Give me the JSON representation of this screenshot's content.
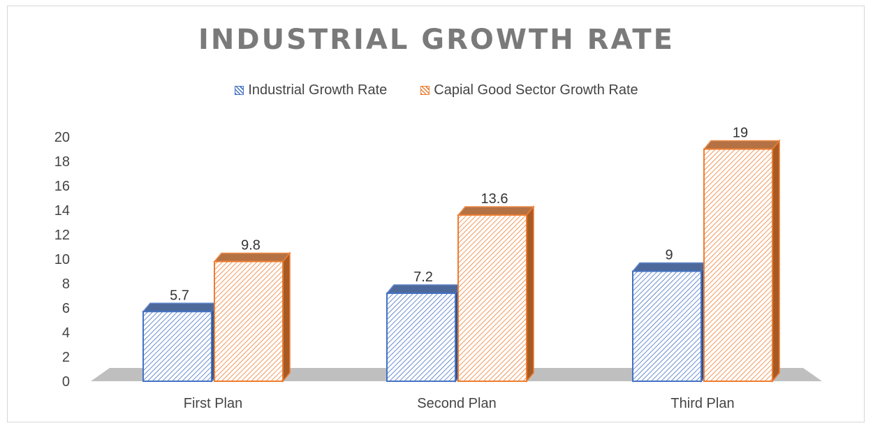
{
  "chart_data": {
    "type": "bar",
    "title": "INDUSTRIAL GROWTH RATE",
    "categories": [
      "First Plan",
      "Second Plan",
      "Third Plan"
    ],
    "series": [
      {
        "name": "Industrial Growth Rate",
        "values": [
          5.7,
          7.2,
          9
        ],
        "labels": [
          "5.7",
          "7.2",
          "9"
        ],
        "color": "#4472c4",
        "side_color": "#2f4f8a"
      },
      {
        "name": "Capial Good Sector Growth Rate",
        "values": [
          9.8,
          13.6,
          19
        ],
        "labels": [
          "9.8",
          "13.6",
          "19"
        ],
        "color": "#ed7d31",
        "side_color": "#a85a24"
      }
    ],
    "ylim": [
      0,
      20
    ],
    "yticks": [
      "0",
      "2",
      "4",
      "6",
      "8",
      "10",
      "12",
      "14",
      "16",
      "18",
      "20"
    ],
    "legend": "top",
    "grid": false,
    "floor_color": "#bfbfbf"
  }
}
